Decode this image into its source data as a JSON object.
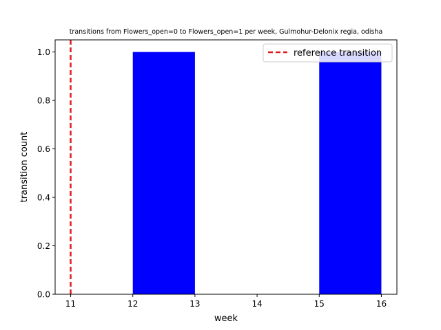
{
  "chart_data": {
    "type": "bar",
    "title": "transitions from Flowers_open=0 to Flowers_open=1 per week, Gulmohur-Delonix regia, odisha",
    "xlabel": "week",
    "ylabel": "transition count",
    "xlim": [
      10.75,
      16.25
    ],
    "ylim": [
      0,
      1.05
    ],
    "xticks": [
      "11",
      "12",
      "13",
      "14",
      "15",
      "16"
    ],
    "yticks": [
      "0.0",
      "0.2",
      "0.4",
      "0.6",
      "0.8",
      "1.0"
    ],
    "bars": [
      {
        "x_start": 12,
        "x_end": 13,
        "value": 1
      },
      {
        "x_start": 15,
        "x_end": 16,
        "value": 1
      }
    ],
    "reference_line": {
      "x": 11,
      "label": "reference transition",
      "color": "#e31a1c",
      "style": "dashed"
    },
    "bar_color": "#0000ff",
    "grid": false,
    "legend": {
      "position": "top-right",
      "entries": [
        "reference transition"
      ]
    }
  }
}
